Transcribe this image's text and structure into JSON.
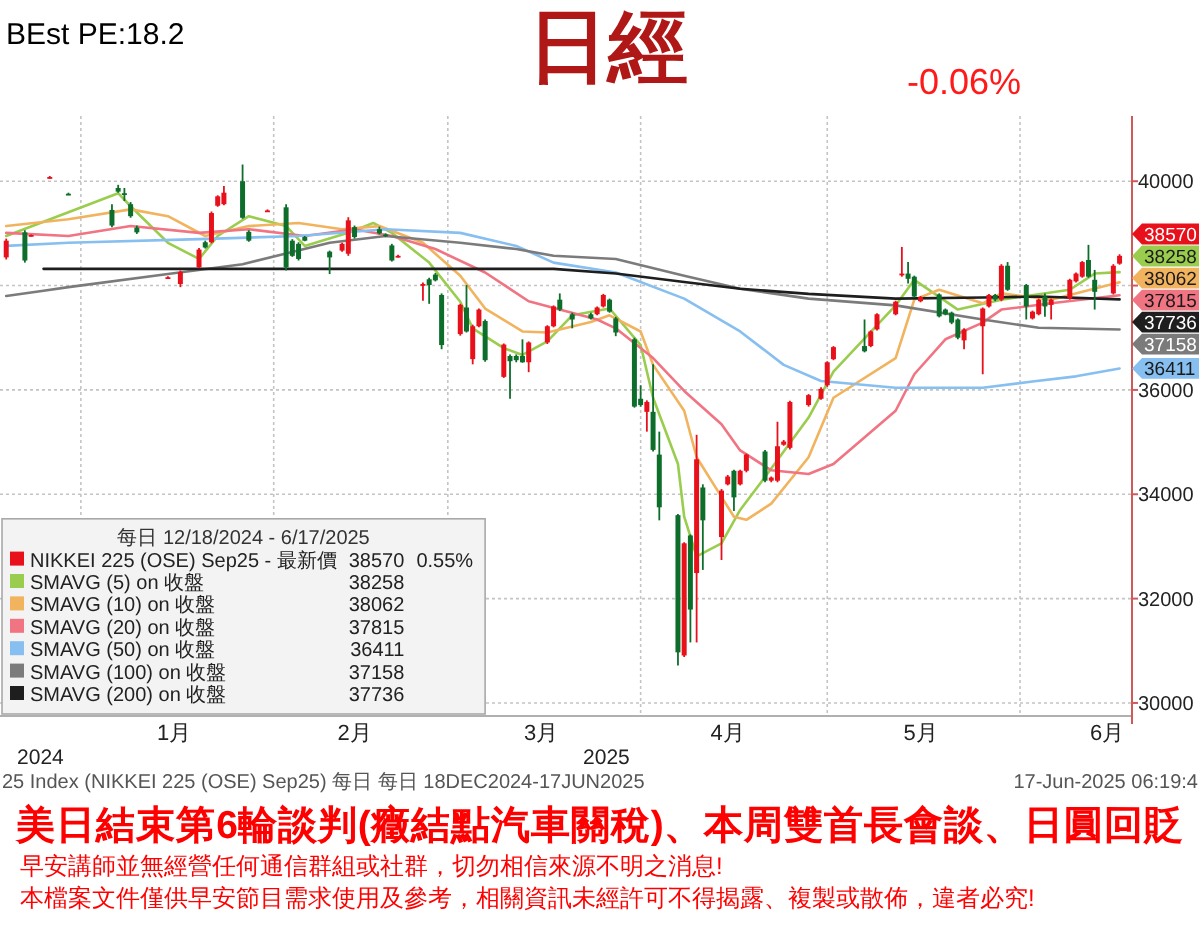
{
  "chart_data": {
    "type": "candlestick",
    "title": "日經",
    "legend_title": "每日 12/18/2024 - 6/17/2025",
    "annotations": [
      "BEst PE:18.2",
      "-0.06%",
      "2024",
      "2025",
      "25 Index (NIKKEI 225 (OSE) Sep25) 每日 每日 18DEC2024-17JUN2025",
      "17-Jun-2025 06:19:4",
      "美日結束第6輪談判(癥結點汽車關稅)、本周雙首長會談、日圓回貶",
      "早安講師並無經營任何通信群組或社群，切勿相信來源不明之消息!",
      "本檔案文件僅供早安節目需求使用及參考，相關資訊未經許可不得揭露、複製或散佈，違者必究!",
      "0.55%"
    ],
    "xlim": [
      "2024-12-19",
      "2025-06-19"
    ],
    "xticks": [
      {
        "value": "2025-01",
        "label": null
      },
      {
        "value": "2025-01-16",
        "label": "1月"
      },
      {
        "value": "2025-02",
        "label": null
      },
      {
        "value": "2025-02-14",
        "label": "2月"
      },
      {
        "value": "2025-03",
        "label": null
      },
      {
        "value": "2025-03-16",
        "label": "3月"
      },
      {
        "value": "2025-04",
        "label": null
      },
      {
        "value": "2025-04-15",
        "label": "4月"
      },
      {
        "value": "2025-05",
        "label": null
      },
      {
        "value": "2025-05-16",
        "label": "5月"
      },
      {
        "value": "2025-06",
        "label": null
      },
      {
        "value": "2025-06-15",
        "label": "6月"
      }
    ],
    "ylim": [
      29750,
      41250
    ],
    "yticks": [
      30000,
      32000,
      34000,
      36000,
      {
        "value": 38000,
        "label": null
      },
      40000
    ],
    "grid": true,
    "legend": "bottom left",
    "series": [
      {
        "name": "NIKKEI 225 (OSE) Sep25 - 最新價",
        "color": "#e8101a",
        "x": [
          "2024-12-20",
          "2024-12-23",
          "2024-12-24",
          "2024-12-27",
          "2024-12-30",
          "2025-01-06",
          "2025-01-07",
          "2025-01-08",
          "2025-01-09",
          "2025-01-10",
          "2025-01-15",
          "2025-01-17",
          "2025-01-20",
          "2025-01-21",
          "2025-01-22",
          "2025-01-23",
          "2025-01-24",
          "2025-01-27",
          "2025-01-28",
          "2025-01-31",
          "2025-02-03",
          "2025-02-04",
          "2025-02-05",
          "2025-02-06",
          "2025-02-10",
          "2025-02-12",
          "2025-02-13",
          "2025-02-14",
          "2025-02-18",
          "2025-02-19",
          "2025-02-20",
          "2025-02-21",
          "2025-02-25",
          "2025-02-26",
          "2025-02-27",
          "2025-02-28",
          "2025-03-03",
          "2025-03-04",
          "2025-03-05",
          "2025-03-06",
          "2025-03-07",
          "2025-03-10",
          "2025-03-11",
          "2025-03-12",
          "2025-03-13",
          "2025-03-14",
          "2025-03-17",
          "2025-03-18",
          "2025-03-19",
          "2025-03-21",
          "2025-03-24",
          "2025-03-25",
          "2025-03-26",
          "2025-03-27",
          "2025-03-28",
          "2025-03-31",
          "2025-04-01",
          "2025-04-02",
          "2025-04-03",
          "2025-04-04",
          "2025-04-07",
          "2025-04-08",
          "2025-04-09",
          "2025-04-10",
          "2025-04-11",
          "2025-04-14",
          "2025-04-15",
          "2025-04-16",
          "2025-04-17",
          "2025-04-18",
          "2025-04-21",
          "2025-04-22",
          "2025-04-23",
          "2025-04-24",
          "2025-04-25",
          "2025-04-28",
          "2025-04-30",
          "2025-05-01",
          "2025-05-02",
          "2025-05-07",
          "2025-05-08",
          "2025-05-09",
          "2025-05-12",
          "2025-05-13",
          "2025-05-14",
          "2025-05-15",
          "2025-05-16",
          "2025-05-19",
          "2025-05-20",
          "2025-05-21",
          "2025-05-22",
          "2025-05-23",
          "2025-05-26",
          "2025-05-27",
          "2025-05-28",
          "2025-05-29",
          "2025-05-30",
          "2025-06-02",
          "2025-06-03",
          "2025-06-04",
          "2025-06-05",
          "2025-06-06",
          "2025-06-09",
          "2025-06-10",
          "2025-06-11",
          "2025-06-12",
          "2025-06-13",
          "2025-06-16",
          "2025-06-17"
        ],
        "ohlc": [
          [
            38540,
            38900,
            38500,
            38860
          ],
          [
            39020,
            39060,
            38440,
            38480
          ],
          [
            38950,
            38980,
            38940,
            38970
          ],
          [
            40060,
            40100,
            40050,
            40080
          ],
          [
            39760,
            39780,
            39740,
            39750
          ],
          [
            39450,
            39560,
            39120,
            39150
          ],
          [
            39870,
            39930,
            39780,
            39800
          ],
          [
            39770,
            39870,
            39620,
            39750
          ],
          [
            39560,
            39600,
            39300,
            39330
          ],
          [
            39110,
            39150,
            38990,
            39020
          ],
          [
            38150,
            38180,
            38140,
            38160
          ],
          [
            38030,
            38290,
            37970,
            38260
          ],
          [
            38350,
            38720,
            38330,
            38690
          ],
          [
            38830,
            38860,
            38710,
            38730
          ],
          [
            38830,
            39420,
            38810,
            39390
          ],
          [
            39530,
            39730,
            39510,
            39710
          ],
          [
            39560,
            39910,
            39540,
            39780
          ],
          [
            40000,
            40320,
            39280,
            39300
          ],
          [
            39030,
            39060,
            38840,
            38860
          ],
          [
            39430,
            39460,
            39420,
            39440
          ],
          [
            39500,
            39560,
            38290,
            38350
          ],
          [
            38860,
            38890,
            38550,
            38570
          ],
          [
            38800,
            38830,
            38480,
            38510
          ],
          [
            38930,
            38950,
            38850,
            38860
          ],
          [
            38650,
            38670,
            38220,
            38540
          ],
          [
            38670,
            38820,
            38650,
            38800
          ],
          [
            38610,
            39310,
            38570,
            39250
          ],
          [
            39120,
            39150,
            38900,
            38930
          ],
          [
            39080,
            39130,
            38980,
            39000
          ],
          [
            38980,
            39000,
            38930,
            38950
          ],
          [
            38770,
            38800,
            38460,
            38480
          ],
          [
            38550,
            38590,
            38540,
            38570
          ],
          [
            38010,
            38060,
            37710,
            38030
          ],
          [
            38120,
            38150,
            37650,
            38010
          ],
          [
            38210,
            38240,
            38080,
            38100
          ],
          [
            37820,
            37850,
            36780,
            36860
          ],
          [
            37070,
            37650,
            37040,
            37630
          ],
          [
            37580,
            38010,
            37100,
            37120
          ],
          [
            36590,
            37250,
            36490,
            37220
          ],
          [
            37220,
            37560,
            37200,
            37540
          ],
          [
            37320,
            37350,
            36540,
            36570
          ],
          [
            36250,
            36890,
            36230,
            36870
          ],
          [
            36650,
            36680,
            35830,
            36550
          ],
          [
            36650,
            36680,
            36530,
            36570
          ],
          [
            36650,
            36970,
            36520,
            36530
          ],
          [
            36530,
            36930,
            36340,
            36910
          ],
          [
            36910,
            37240,
            36880,
            37220
          ],
          [
            37220,
            37620,
            37200,
            37600
          ],
          [
            37730,
            37850,
            37510,
            37540
          ],
          [
            37450,
            37480,
            37180,
            37350
          ],
          [
            37450,
            37480,
            37350,
            37370
          ],
          [
            37450,
            37600,
            37430,
            37580
          ],
          [
            37600,
            37840,
            37580,
            37820
          ],
          [
            37730,
            37750,
            37480,
            37500
          ],
          [
            37370,
            37400,
            37030,
            37100
          ],
          [
            36970,
            37000,
            35660,
            35680
          ],
          [
            35830,
            36090,
            35680,
            35710
          ],
          [
            35580,
            35800,
            35200,
            35770
          ],
          [
            35580,
            36490,
            34820,
            34850
          ],
          [
            34760,
            35200,
            33500,
            33750
          ],
          [
            33600,
            33620,
            30720,
            30970
          ],
          [
            30910,
            33080,
            30880,
            33060
          ],
          [
            33210,
            33230,
            31160,
            31790
          ],
          [
            32490,
            35140,
            31160,
            34670
          ],
          [
            34130,
            34190,
            32550,
            33500
          ],
          [
            33180,
            34100,
            32740,
            34070
          ],
          [
            34190,
            34370,
            34170,
            34340
          ],
          [
            34450,
            34470,
            33680,
            33940
          ],
          [
            34190,
            34470,
            34170,
            34450
          ],
          [
            34450,
            34780,
            34420,
            34760
          ],
          [
            34820,
            34850,
            34230,
            34260
          ],
          [
            34260,
            34340,
            34230,
            34320
          ],
          [
            34260,
            35390,
            34230,
            34920
          ],
          [
            34950,
            35040,
            34930,
            35010
          ],
          [
            34890,
            35790,
            34860,
            35770
          ],
          [
            35710,
            35920,
            35680,
            35900
          ],
          [
            35830,
            36050,
            35810,
            36020
          ],
          [
            36090,
            36550,
            36060,
            36530
          ],
          [
            36590,
            36840,
            36570,
            36820
          ],
          [
            36840,
            37350,
            36720,
            36740
          ],
          [
            36840,
            37140,
            36820,
            37120
          ],
          [
            37160,
            37470,
            37140,
            37450
          ],
          [
            37450,
            37710,
            37430,
            37690
          ],
          [
            38200,
            38740,
            38170,
            38230
          ],
          [
            38230,
            38450,
            38040,
            38130
          ],
          [
            38170,
            38190,
            37770,
            37790
          ],
          [
            37700,
            37800,
            37680,
            37780
          ],
          [
            37830,
            37850,
            37390,
            37410
          ],
          [
            37540,
            37560,
            37430,
            37450
          ],
          [
            37480,
            37500,
            37260,
            37290
          ],
          [
            37350,
            37370,
            36970,
            37000
          ],
          [
            36950,
            37180,
            36780,
            37160
          ],
          [
            37220,
            37580,
            36300,
            37560
          ],
          [
            37600,
            37840,
            37580,
            37820
          ],
          [
            37820,
            37840,
            37700,
            37730
          ],
          [
            37730,
            38410,
            37700,
            38380
          ],
          [
            38380,
            38450,
            37900,
            37920
          ],
          [
            38010,
            38030,
            37350,
            37600
          ],
          [
            37370,
            37520,
            37350,
            37500
          ],
          [
            37450,
            37750,
            37430,
            37730
          ],
          [
            37790,
            37850,
            37400,
            37600
          ],
          [
            37630,
            37750,
            37350,
            37730
          ],
          [
            37750,
            38130,
            37730,
            38110
          ],
          [
            38080,
            38250,
            38060,
            38230
          ],
          [
            38170,
            38470,
            38150,
            38450
          ],
          [
            38490,
            38780,
            38150,
            38170
          ],
          [
            38110,
            38300,
            37540,
            37880
          ],
          [
            37850,
            38410,
            37830,
            38380
          ],
          [
            38420,
            38600,
            38400,
            38570
          ]
        ],
        "colors": [
          "#e8101a",
          "#0d6e2b",
          "#e8101a",
          "#e8101a",
          "#0d6e2b",
          "#0d6e2b",
          "#0d6e2b",
          "#0d6e2b",
          "#0d6e2b",
          "#0d6e2b",
          "#e8101a",
          "#e8101a",
          "#e8101a",
          "#0d6e2b",
          "#e8101a",
          "#e8101a",
          "#e8101a",
          "#0d6e2b",
          "#0d6e2b",
          "#e8101a",
          "#0d6e2b",
          "#0d6e2b",
          "#0d6e2b",
          "#0d6e2b",
          "#0d6e2b",
          "#e8101a",
          "#e8101a",
          "#0d6e2b",
          "#0d6e2b",
          "#0d6e2b",
          "#0d6e2b",
          "#e8101a",
          "#e8101a",
          "#0d6e2b",
          "#0d6e2b",
          "#0d6e2b",
          "#e8101a",
          "#0d6e2b",
          "#e8101a",
          "#e8101a",
          "#0d6e2b",
          "#e8101a",
          "#0d6e2b",
          "#0d6e2b",
          "#0d6e2b",
          "#e8101a",
          "#e8101a",
          "#e8101a",
          "#0d6e2b",
          "#0d6e2b",
          "#0d6e2b",
          "#e8101a",
          "#e8101a",
          "#0d6e2b",
          "#0d6e2b",
          "#0d6e2b",
          "#0d6e2b",
          "#e8101a",
          "#0d6e2b",
          "#0d6e2b",
          "#0d6e2b",
          "#e8101a",
          "#0d6e2b",
          "#e8101a",
          "#0d6e2b",
          "#e8101a",
          "#e8101a",
          "#0d6e2b",
          "#e8101a",
          "#e8101a",
          "#0d6e2b",
          "#e8101a",
          "#e8101a",
          "#e8101a",
          "#e8101a",
          "#e8101a",
          "#e8101a",
          "#e8101a",
          "#e8101a",
          "#0d6e2b",
          "#e8101a",
          "#e8101a",
          "#e8101a",
          "#e8101a",
          "#0d6e2b",
          "#0d6e2b",
          "#e8101a",
          "#0d6e2b",
          "#0d6e2b",
          "#0d6e2b",
          "#0d6e2b",
          "#e8101a",
          "#e8101a",
          "#e8101a",
          "#0d6e2b",
          "#e8101a",
          "#0d6e2b",
          "#0d6e2b",
          "#e8101a",
          "#e8101a",
          "#0d6e2b",
          "#e8101a",
          "#e8101a",
          "#e8101a",
          "#e8101a",
          "#0d6e2b",
          "#0d6e2b",
          "#e8101a",
          "#e8101a"
        ],
        "value_labels": [
          null,
          null,
          null,
          null,
          null,
          null,
          null,
          null,
          null,
          null,
          null,
          null,
          null,
          null,
          null,
          null,
          null,
          null,
          null,
          null,
          null,
          null,
          null,
          null,
          null,
          null,
          null,
          null,
          null,
          null,
          null,
          null,
          null,
          null,
          null,
          null,
          null,
          null,
          null,
          null,
          null,
          null,
          null,
          null,
          null,
          null,
          null,
          null,
          null,
          null,
          null,
          null,
          null,
          null,
          null,
          null,
          null,
          null,
          null,
          null,
          null,
          null,
          null,
          null,
          null,
          null,
          null,
          null,
          null,
          null,
          null,
          null,
          null,
          null,
          null,
          null,
          null,
          null,
          null,
          null,
          null,
          null,
          null,
          null,
          null,
          null,
          null,
          null,
          null,
          null,
          null,
          null,
          null,
          null,
          null,
          null,
          null,
          null,
          null,
          null,
          null,
          null,
          null,
          null,
          null,
          null,
          null,
          null,
          "38570"
        ]
      },
      {
        "name": "SMAVG (5) on 收盤",
        "type": "line",
        "color": "#9acd4e",
        "x": [
          "2024-12-20",
          "2025-01-07",
          "2025-01-09",
          "2025-01-15",
          "2025-01-20",
          "2025-01-23",
          "2025-01-28",
          "2025-02-03",
          "2025-02-06",
          "2025-02-13",
          "2025-02-17",
          "2025-02-20",
          "2025-02-26",
          "2025-03-03",
          "2025-03-05",
          "2025-03-10",
          "2025-03-13",
          "2025-03-17",
          "2025-03-21",
          "2025-03-27",
          "2025-04-01",
          "2025-04-03",
          "2025-04-07",
          "2025-04-08",
          "2025-04-10",
          "2025-04-14",
          "2025-04-17",
          "2025-04-21",
          "2025-04-28",
          "2025-05-02",
          "2025-05-12",
          "2025-05-15",
          "2025-05-22",
          "2025-05-29",
          "2025-06-09",
          "2025-06-13",
          "2025-06-17"
        ],
        "values": [
          38950,
          39770,
          39520,
          38820,
          38510,
          38950,
          39330,
          39140,
          38760,
          39010,
          39200,
          39010,
          38440,
          37690,
          37180,
          36800,
          36670,
          36930,
          37430,
          37560,
          36860,
          35850,
          34580,
          33570,
          32810,
          33060,
          33700,
          34330,
          35470,
          36350,
          37620,
          38110,
          37540,
          37730,
          37920,
          38230,
          38258
        ],
        "value_labels": [
          null,
          null,
          null,
          null,
          null,
          null,
          null,
          null,
          null,
          null,
          null,
          null,
          null,
          null,
          null,
          null,
          null,
          null,
          null,
          null,
          null,
          null,
          null,
          null,
          null,
          null,
          null,
          null,
          null,
          null,
          null,
          null,
          null,
          null,
          null,
          null,
          "38258"
        ]
      },
      {
        "name": "SMAVG (10) on 收盤",
        "type": "line",
        "color": "#f2b35e",
        "x": [
          "2024-12-20",
          "2024-12-30",
          "2025-01-09",
          "2025-01-15",
          "2025-01-21",
          "2025-01-28",
          "2025-02-05",
          "2025-02-12",
          "2025-02-18",
          "2025-02-25",
          "2025-03-03",
          "2025-03-07",
          "2025-03-13",
          "2025-03-17",
          "2025-03-24",
          "2025-03-27",
          "2025-04-01",
          "2025-04-03",
          "2025-04-08",
          "2025-04-10",
          "2025-04-14",
          "2025-04-16",
          "2025-04-18",
          "2025-04-22",
          "2025-04-28",
          "2025-05-02",
          "2025-05-12",
          "2025-05-15",
          "2025-05-19",
          "2025-05-26",
          "2025-05-29",
          "2025-06-06",
          "2025-06-17"
        ],
        "values": [
          39140,
          39270,
          39460,
          39330,
          38950,
          39140,
          39200,
          39080,
          39140,
          38820,
          38190,
          37560,
          37120,
          37100,
          37300,
          37430,
          37120,
          36480,
          35600,
          34710,
          33950,
          33570,
          33510,
          33820,
          34710,
          35850,
          36610,
          37730,
          37920,
          37660,
          37850,
          37730,
          38062
        ],
        "value_labels": [
          null,
          null,
          null,
          null,
          null,
          null,
          null,
          null,
          null,
          null,
          null,
          null,
          null,
          null,
          null,
          null,
          null,
          null,
          null,
          null,
          null,
          null,
          null,
          null,
          null,
          null,
          null,
          null,
          null,
          null,
          null,
          null,
          "38062"
        ]
      },
      {
        "name": "SMAVG (20) on 收盤",
        "type": "line",
        "color": "#f07482",
        "x": [
          "2024-12-20",
          "2024-12-30",
          "2025-01-09",
          "2025-01-20",
          "2025-01-28",
          "2025-02-06",
          "2025-02-14",
          "2025-02-20",
          "2025-02-27",
          "2025-03-07",
          "2025-03-14",
          "2025-03-25",
          "2025-03-28",
          "2025-04-03",
          "2025-04-08",
          "2025-04-14",
          "2025-04-17",
          "2025-04-22",
          "2025-04-28",
          "2025-05-02",
          "2025-05-12",
          "2025-05-15",
          "2025-05-20",
          "2025-05-26",
          "2025-05-29",
          "2025-06-06",
          "2025-06-17"
        ],
        "values": [
          39010,
          38950,
          39140,
          39010,
          39080,
          38950,
          39080,
          38950,
          38700,
          38250,
          37700,
          37350,
          37180,
          36610,
          35980,
          35340,
          34840,
          34460,
          34390,
          34580,
          35600,
          36300,
          36970,
          37290,
          37540,
          37660,
          37815
        ],
        "value_labels": [
          null,
          null,
          null,
          null,
          null,
          null,
          null,
          null,
          null,
          null,
          null,
          null,
          null,
          null,
          null,
          null,
          null,
          null,
          null,
          null,
          null,
          null,
          null,
          null,
          null,
          null,
          "37815"
        ]
      },
      {
        "name": "SMAVG (50) on 收盤",
        "type": "line",
        "color": "#86bff0",
        "x": [
          "2024-12-20",
          "2024-12-30",
          "2025-01-20",
          "2025-02-05",
          "2025-02-19",
          "2025-03-03",
          "2025-03-12",
          "2025-03-18",
          "2025-03-28",
          "2025-04-08",
          "2025-04-17",
          "2025-04-24",
          "2025-04-30",
          "2025-05-12",
          "2025-05-26",
          "2025-06-03",
          "2025-06-10",
          "2025-06-17"
        ],
        "values": [
          38760,
          38820,
          38890,
          38950,
          39080,
          39010,
          38760,
          38440,
          38250,
          37750,
          37120,
          36480,
          36170,
          36040,
          36040,
          36160,
          36260,
          36411
        ],
        "value_labels": [
          null,
          null,
          null,
          null,
          null,
          null,
          null,
          null,
          null,
          null,
          null,
          null,
          null,
          null,
          null,
          null,
          null,
          "36411"
        ]
      },
      {
        "name": "SMAVG (100) on 收盤",
        "type": "line",
        "color": "#7b7b7b",
        "x": [
          "2024-12-20",
          "2024-12-26",
          "2024-12-30",
          "2025-01-15",
          "2025-01-27",
          "2025-02-10",
          "2025-02-19",
          "2025-03-03",
          "2025-03-12",
          "2025-03-18",
          "2025-03-28",
          "2025-04-08",
          "2025-04-17",
          "2025-04-28",
          "2025-05-12",
          "2025-05-26",
          "2025-06-04",
          "2025-06-17"
        ],
        "values": [
          37800,
          37900,
          37970,
          38220,
          38410,
          38820,
          38950,
          38820,
          38700,
          38570,
          38510,
          38190,
          37940,
          37750,
          37620,
          37350,
          37190,
          37158
        ],
        "value_labels": [
          null,
          null,
          null,
          null,
          null,
          null,
          null,
          null,
          null,
          null,
          null,
          null,
          null,
          null,
          null,
          null,
          null,
          "37158"
        ]
      },
      {
        "name": "SMAVG (200) on 收盤",
        "type": "line",
        "color": "#1e1e1e",
        "x": [
          "2024-12-26",
          "2025-01-28",
          "2025-03-04",
          "2025-03-18",
          "2025-03-28",
          "2025-04-08",
          "2025-04-17",
          "2025-04-28",
          "2025-05-12",
          "2025-05-26",
          "2025-06-04",
          "2025-06-17"
        ],
        "values": [
          38320,
          38320,
          38320,
          38320,
          38230,
          38070,
          37940,
          37840,
          37750,
          37770,
          37790,
          37736
        ],
        "value_labels": [
          null,
          null,
          null,
          null,
          null,
          null,
          null,
          null,
          null,
          null,
          null,
          "37736"
        ]
      }
    ]
  }
}
